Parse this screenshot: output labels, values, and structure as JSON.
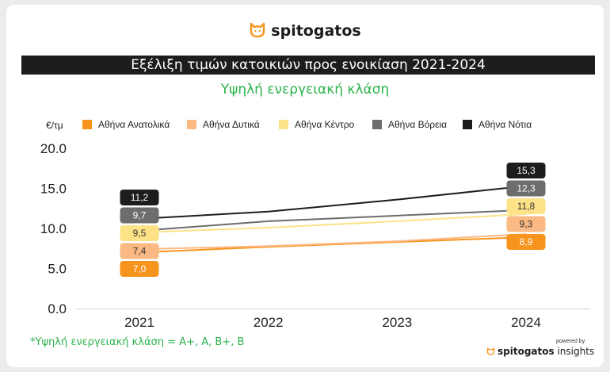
{
  "brand": {
    "name": "spitogatos",
    "icon": "cat-logo-icon",
    "color": "#f7941d"
  },
  "title": "Εξέλιξη τιμών κατοικιών προς ενοικίαση 2021-2024",
  "subtitle": "Υψηλή ενεργειακή κλάση",
  "footnote": "*Υψηλή ενεργειακή κλάση = A+, A, B+, B",
  "powered": {
    "label": "powered by",
    "brand": "spitogatos",
    "suffix": "insights"
  },
  "chart_data": {
    "type": "line",
    "ylabel": "€/τμ",
    "ylim": [
      0,
      20
    ],
    "yticks": [
      "0.0",
      "5.0",
      "10.0",
      "15.0",
      "20.0"
    ],
    "x": [
      "2021",
      "2022",
      "2023",
      "2024"
    ],
    "grid": false,
    "legend_position": "top",
    "series": [
      {
        "name": "Αθήνα Ανατολικά",
        "color": "#f7941d",
        "values": [
          7.0,
          7.7,
          8.3,
          8.9
        ],
        "labels": [
          "7,0",
          "8,9"
        ]
      },
      {
        "name": "Αθήνα Δυτικά",
        "color": "#fbb984",
        "values": [
          7.4,
          7.8,
          8.4,
          9.3
        ],
        "labels": [
          "7,4",
          "9,3"
        ]
      },
      {
        "name": "Αθήνα Κέντρο",
        "color": "#fde288",
        "values": [
          9.5,
          10.1,
          10.9,
          11.8
        ],
        "labels": [
          "9,5",
          "11,8"
        ]
      },
      {
        "name": "Αθήνα Βόρεια",
        "color": "#6d6d6d",
        "values": [
          9.7,
          10.9,
          11.6,
          12.3
        ],
        "labels": [
          "9,7",
          "12,3"
        ]
      },
      {
        "name": "Αθήνα Νότια",
        "color": "#1d1d1d",
        "values": [
          11.2,
          12.1,
          13.6,
          15.3
        ],
        "labels": [
          "11,2",
          "15,3"
        ]
      }
    ]
  }
}
